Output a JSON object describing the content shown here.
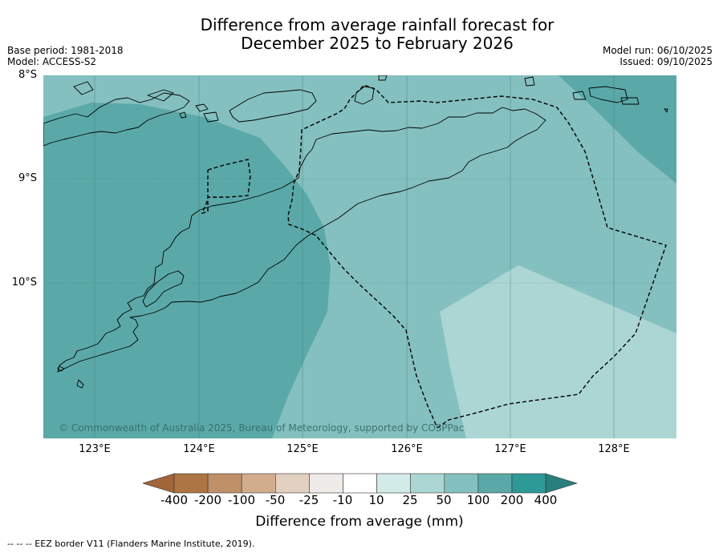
{
  "title": {
    "line1": "Difference from average rainfall forecast for",
    "line2": "December 2025 to February 2026"
  },
  "meta": {
    "base_period": "Base period: 1981-2018",
    "model": "Model: ACCESS-S2",
    "model_run": "Model run: 06/10/2025",
    "issued": "Issued: 09/10/2025"
  },
  "axes": {
    "lat_labels": [
      "8°S",
      "9°S",
      "10°S"
    ],
    "lon_labels": [
      "123°E",
      "124°E",
      "125°E",
      "126°E",
      "127°E",
      "128°E"
    ]
  },
  "copyright": "© Commonwealth of Australia 2025, Bureau of Meteorology, supported by COSPPac",
  "colorbar": {
    "label": "Difference from average (mm)",
    "ticks": [
      "-400",
      "-200",
      "-100",
      "-50",
      "-25",
      "-10",
      "10",
      "25",
      "50",
      "100",
      "200",
      "400"
    ],
    "colors": [
      "#a0663a",
      "#ad7543",
      "#c09068",
      "#d1ad8d",
      "#e2d0c0",
      "#efebe9",
      "#ffffff",
      "#d3ebe8",
      "#acd6d4",
      "#84c0bf",
      "#5aa9a8",
      "#2e9a97",
      "#287f7e"
    ]
  },
  "legend_footer": "--  --  -- EEZ border V11 (Flanders Marine Institute, 2019).",
  "map_colors": {
    "band_200": "#5aa9a8",
    "band_100": "#84c0bf",
    "band_50": "#acd6d4",
    "land_line": "#000000",
    "eez_line": "#000000"
  }
}
